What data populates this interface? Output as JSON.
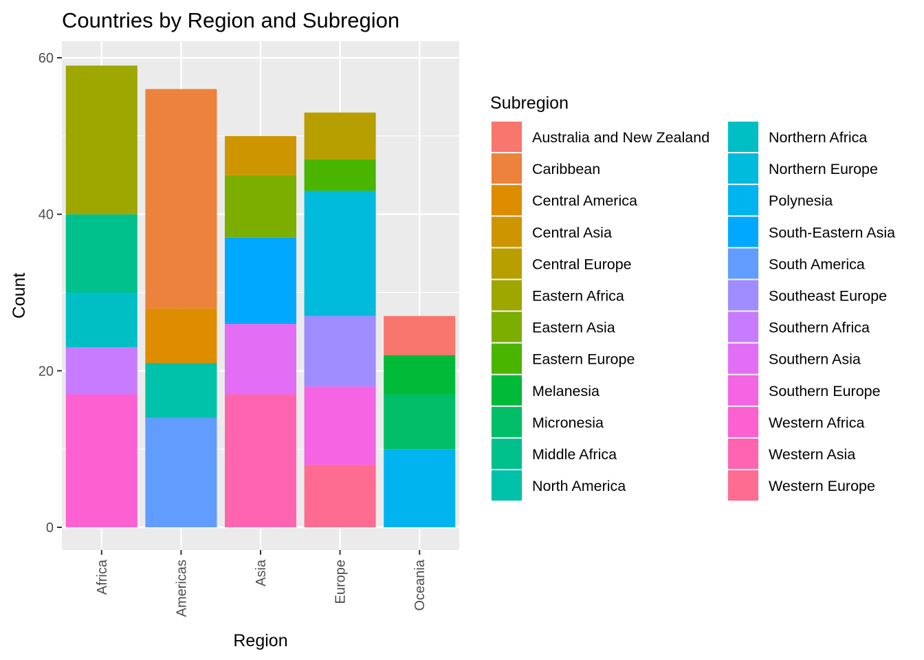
{
  "chart_data": {
    "type": "bar",
    "stacked": true,
    "title": "Countries by Region and Subregion",
    "xlabel": "Region",
    "ylabel": "Count",
    "categories": [
      "Africa",
      "Americas",
      "Asia",
      "Europe",
      "Oceania"
    ],
    "ylim": [
      0,
      62
    ],
    "yticks": [
      0,
      20,
      40,
      60
    ],
    "grid": true,
    "legend": {
      "title": "Subregion",
      "placement": "right",
      "columns": 2
    },
    "series": [
      {
        "name": "Australia and New Zealand",
        "color": "#F8766D",
        "values": [
          0,
          0,
          0,
          0,
          5
        ]
      },
      {
        "name": "Caribbean",
        "color": "#EC823C",
        "values": [
          0,
          28,
          0,
          0,
          0
        ]
      },
      {
        "name": "Central America",
        "color": "#DE8C00",
        "values": [
          0,
          7,
          0,
          0,
          0
        ]
      },
      {
        "name": "Central Asia",
        "color": "#CD9600",
        "values": [
          0,
          0,
          5,
          0,
          0
        ]
      },
      {
        "name": "Central Europe",
        "color": "#B79F00",
        "values": [
          0,
          0,
          0,
          6,
          0
        ]
      },
      {
        "name": "Eastern Africa",
        "color": "#9DA700",
        "values": [
          19,
          0,
          0,
          0,
          0
        ]
      },
      {
        "name": "Eastern Asia",
        "color": "#7CAE00",
        "values": [
          0,
          0,
          8,
          0,
          0
        ]
      },
      {
        "name": "Eastern Europe",
        "color": "#49B500",
        "values": [
          0,
          0,
          0,
          4,
          0
        ]
      },
      {
        "name": "Melanesia",
        "color": "#00BA38",
        "values": [
          0,
          0,
          0,
          0,
          5
        ]
      },
      {
        "name": "Micronesia",
        "color": "#00BE67",
        "values": [
          0,
          0,
          0,
          0,
          7
        ]
      },
      {
        "name": "Middle Africa",
        "color": "#00C08B",
        "values": [
          10,
          0,
          0,
          0,
          0
        ]
      },
      {
        "name": "North America",
        "color": "#00C1A9",
        "values": [
          0,
          7,
          0,
          0,
          0
        ]
      },
      {
        "name": "Northern Africa",
        "color": "#00BFC4",
        "values": [
          7,
          0,
          0,
          0,
          0
        ]
      },
      {
        "name": "Northern Europe",
        "color": "#00BBDB",
        "values": [
          0,
          0,
          0,
          16,
          0
        ]
      },
      {
        "name": "Polynesia",
        "color": "#00B4EF",
        "values": [
          0,
          0,
          0,
          0,
          10
        ]
      },
      {
        "name": "South-Eastern Asia",
        "color": "#00A9FF",
        "values": [
          0,
          0,
          11,
          0,
          0
        ]
      },
      {
        "name": "South America",
        "color": "#619CFF",
        "values": [
          0,
          14,
          0,
          0,
          0
        ]
      },
      {
        "name": "Southeast Europe",
        "color": "#9F8CFF",
        "values": [
          0,
          0,
          0,
          9,
          0
        ]
      },
      {
        "name": "Southern Africa",
        "color": "#C77CFF",
        "values": [
          6,
          0,
          0,
          0,
          0
        ]
      },
      {
        "name": "Southern Asia",
        "color": "#E36EF6",
        "values": [
          0,
          0,
          9,
          0,
          0
        ]
      },
      {
        "name": "Southern Europe",
        "color": "#F564E3",
        "values": [
          0,
          0,
          0,
          10,
          0
        ]
      },
      {
        "name": "Western Africa",
        "color": "#FD61D1",
        "values": [
          17,
          0,
          0,
          0,
          0
        ]
      },
      {
        "name": "Western Asia",
        "color": "#FF64B0",
        "values": [
          0,
          0,
          17,
          0,
          0
        ]
      },
      {
        "name": "Western Europe",
        "color": "#FF6C91",
        "values": [
          0,
          0,
          0,
          8,
          0
        ]
      }
    ]
  }
}
